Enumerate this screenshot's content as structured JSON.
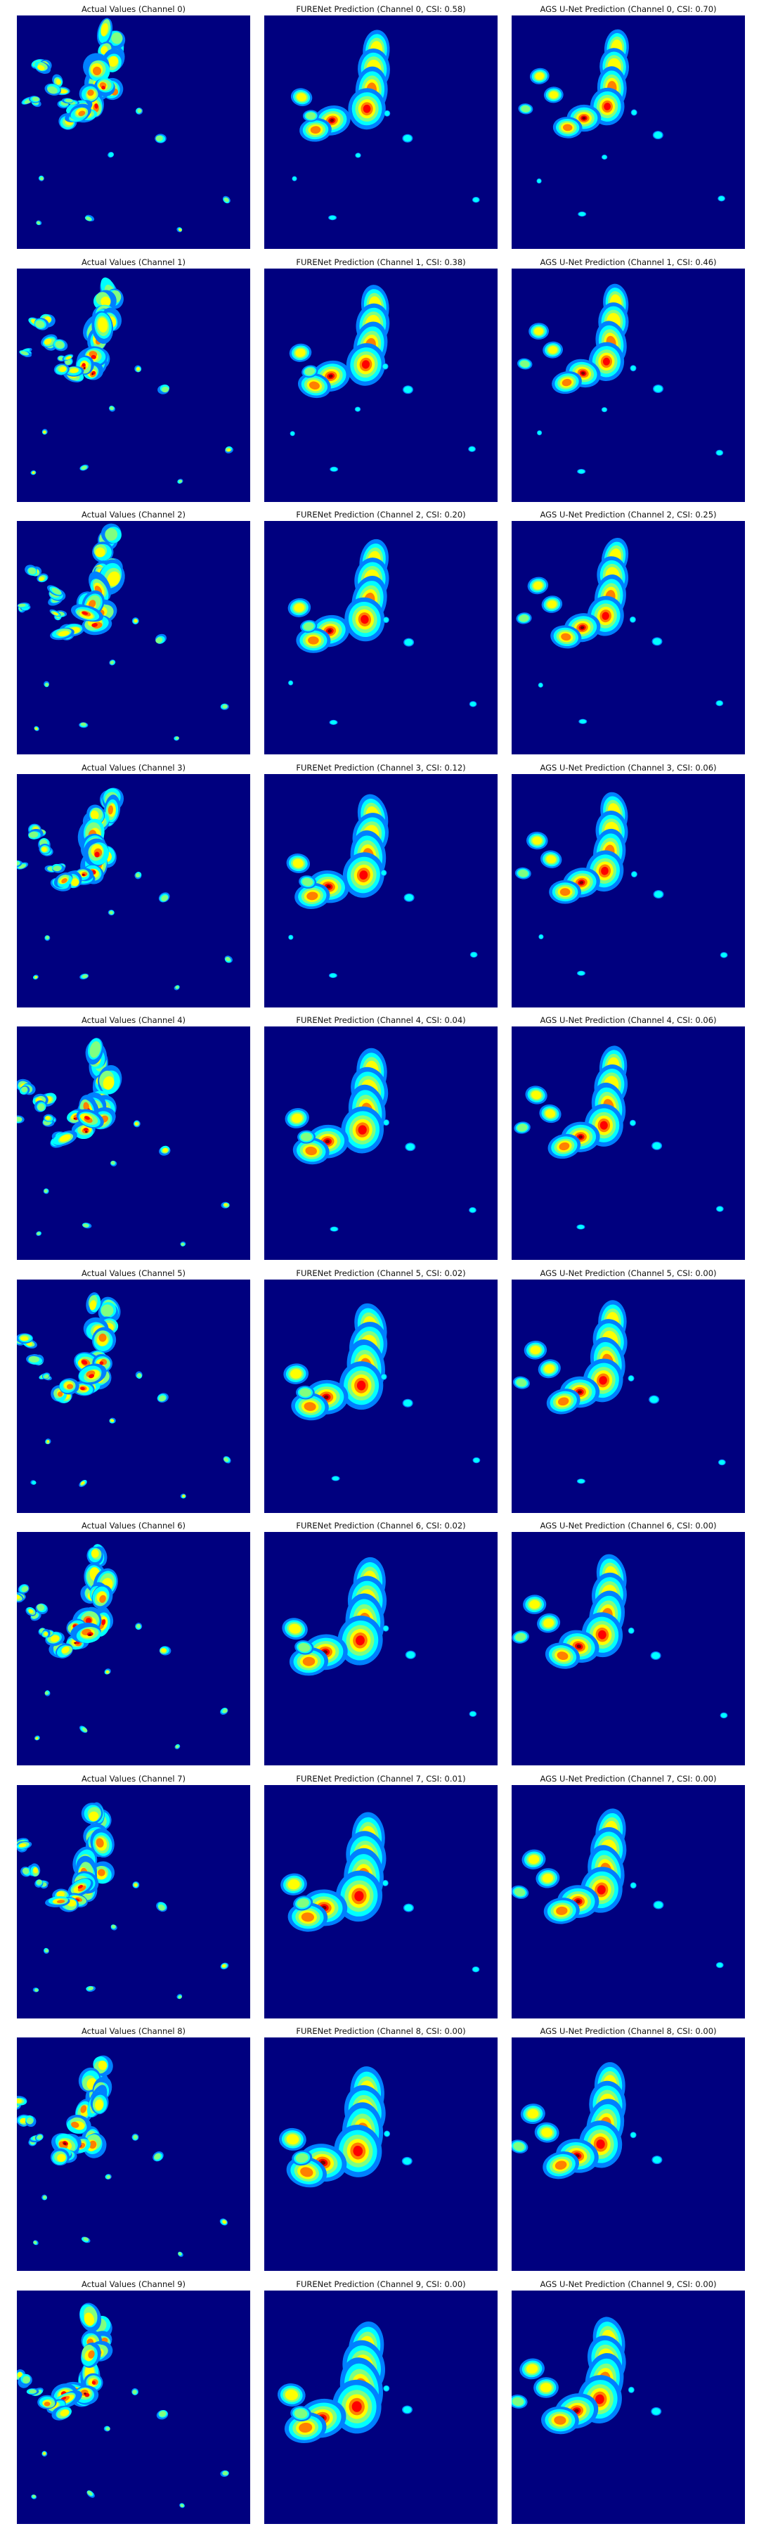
{
  "colors": {
    "background": "#00007f",
    "colormap": [
      "#00007f",
      "#0000ff",
      "#0080ff",
      "#00ffff",
      "#80ff80",
      "#ffff00",
      "#ff8000",
      "#ff0000",
      "#7f0000"
    ]
  },
  "rows": [
    {
      "channel": 0,
      "titles": [
        "Actual Values (Channel 0)",
        "FURENet Prediction (Channel 0, CSI: 0.58)",
        "AGS U-Net Prediction (Channel 0, CSI: 0.70)"
      ],
      "fureCSI": 0.58,
      "agsCSI": 0.7
    },
    {
      "channel": 1,
      "titles": [
        "Actual Values (Channel 1)",
        "FURENet Prediction (Channel 1, CSI: 0.38)",
        "AGS U-Net Prediction (Channel 1, CSI: 0.46)"
      ],
      "fureCSI": 0.38,
      "agsCSI": 0.46
    },
    {
      "channel": 2,
      "titles": [
        "Actual Values (Channel 2)",
        "FURENet Prediction (Channel 2, CSI: 0.20)",
        "AGS U-Net Prediction (Channel 2, CSI: 0.25)"
      ],
      "fureCSI": 0.2,
      "agsCSI": 0.25
    },
    {
      "channel": 3,
      "titles": [
        "Actual Values (Channel 3)",
        "FURENet Prediction (Channel 3, CSI: 0.12)",
        "AGS U-Net Prediction (Channel 3, CSI: 0.06)"
      ],
      "fureCSI": 0.12,
      "agsCSI": 0.06
    },
    {
      "channel": 4,
      "titles": [
        "Actual Values (Channel 4)",
        "FURENet Prediction (Channel 4, CSI: 0.04)",
        "AGS U-Net Prediction (Channel 4, CSI: 0.06)"
      ],
      "fureCSI": 0.04,
      "agsCSI": 0.06
    },
    {
      "channel": 5,
      "titles": [
        "Actual Values (Channel 5)",
        "FURENet Prediction (Channel 5, CSI: 0.02)",
        "AGS U-Net Prediction (Channel 5, CSI: 0.00)"
      ],
      "fureCSI": 0.02,
      "agsCSI": 0.0
    },
    {
      "channel": 6,
      "titles": [
        "Actual Values (Channel 6)",
        "FURENet Prediction (Channel 6, CSI: 0.02)",
        "AGS U-Net Prediction (Channel 6, CSI: 0.00)"
      ],
      "fureCSI": 0.02,
      "agsCSI": 0.0
    },
    {
      "channel": 7,
      "titles": [
        "Actual Values (Channel 7)",
        "FURENet Prediction (Channel 7, CSI: 0.01)",
        "AGS U-Net Prediction (Channel 7, CSI: 0.00)"
      ],
      "fureCSI": 0.01,
      "agsCSI": 0.0
    },
    {
      "channel": 8,
      "titles": [
        "Actual Values (Channel 8)",
        "FURENet Prediction (Channel 8, CSI: 0.00)",
        "AGS U-Net Prediction (Channel 8, CSI: 0.00)"
      ],
      "fureCSI": 0.0,
      "agsCSI": 0.0
    },
    {
      "channel": 9,
      "titles": [
        "Actual Values (Channel 9)",
        "FURENet Prediction (Channel 9, CSI: 0.00)",
        "AGS U-Net Prediction (Channel 9, CSI: 0.00)"
      ],
      "fureCSI": 0.0,
      "agsCSI": 0.0
    }
  ]
}
